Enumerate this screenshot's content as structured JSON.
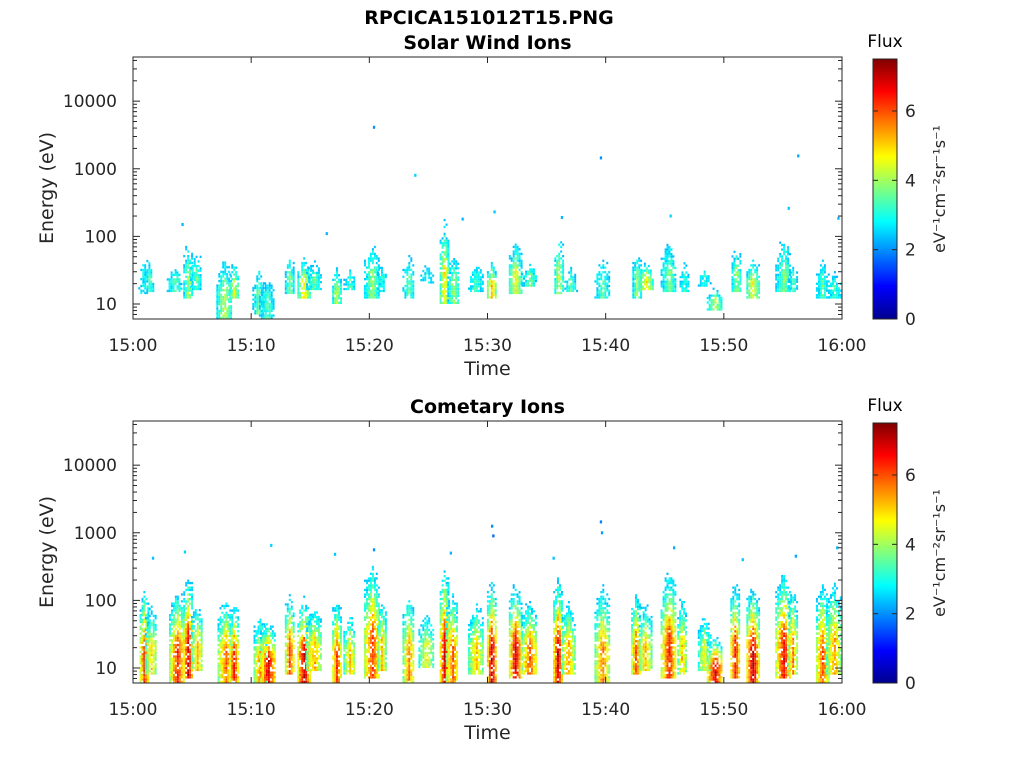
{
  "figure": {
    "title": "RPCICA151012T15.PNG"
  },
  "colorbar": {
    "label": "Flux",
    "unit_label": "eV⁻¹cm⁻²sr⁻¹s⁻¹",
    "range": [
      0,
      7.5
    ],
    "ticks": [
      0,
      2,
      4,
      6
    ],
    "colormap": "jet"
  },
  "chart_data": [
    {
      "type": "heatmap",
      "title": "Solar Wind Ions",
      "xlabel": "Time",
      "ylabel": "Energy (eV)",
      "x_ticks": [
        "15:00",
        "15:10",
        "15:20",
        "15:30",
        "15:40",
        "15:50",
        "16:00"
      ],
      "x_range_min": [
        0,
        60
      ],
      "y_ticks": [
        10,
        100,
        1000,
        10000
      ],
      "y_range": [
        6,
        45000
      ],
      "y_scale": "log",
      "colorbar_label": "Flux",
      "events": [
        {
          "t": 0.8,
          "e_lo": 14,
          "e_hi": 85,
          "peak": 3.0
        },
        {
          "t": 1.3,
          "e_lo": 15,
          "e_hi": 75,
          "peak": 3.3
        },
        {
          "t": 3.5,
          "e_lo": 15,
          "e_hi": 45,
          "peak": 3.5
        },
        {
          "t": 4.6,
          "e_lo": 12,
          "e_hi": 130,
          "peak": 4.0
        },
        {
          "t": 5.3,
          "e_lo": 16,
          "e_hi": 100,
          "peak": 3.5
        },
        {
          "t": 7.7,
          "e_lo": 6,
          "e_hi": 75,
          "peak": 4.2
        },
        {
          "t": 8.5,
          "e_lo": 12,
          "e_hi": 50,
          "peak": 4.4
        },
        {
          "t": 10.6,
          "e_lo": 7,
          "e_hi": 60,
          "peak": 3.6
        },
        {
          "t": 11.3,
          "e_lo": 6,
          "e_hi": 45,
          "peak": 3.4
        },
        {
          "t": 13.2,
          "e_lo": 14,
          "e_hi": 75,
          "peak": 3.8
        },
        {
          "t": 14.4,
          "e_lo": 12,
          "e_hi": 55,
          "peak": 4.9
        },
        {
          "t": 15.3,
          "e_lo": 16,
          "e_hi": 60,
          "peak": 3.5
        },
        {
          "t": 17.2,
          "e_lo": 10,
          "e_hi": 45,
          "peak": 4.2
        },
        {
          "t": 18.3,
          "e_lo": 16,
          "e_hi": 45,
          "peak": 3.3
        },
        {
          "t": 20.2,
          "e_lo": 12,
          "e_hi": 140,
          "peak": 3.9
        },
        {
          "t": 21.0,
          "e_lo": 15,
          "e_hi": 60,
          "peak": 3.2
        },
        {
          "t": 23.3,
          "e_lo": 12,
          "e_hi": 80,
          "peak": 3.6
        },
        {
          "t": 24.8,
          "e_lo": 20,
          "e_hi": 50,
          "peak": 3.0
        },
        {
          "t": 26.3,
          "e_lo": 10,
          "e_hi": 260,
          "peak": 4.8
        },
        {
          "t": 27.1,
          "e_lo": 10,
          "e_hi": 80,
          "peak": 4.0
        },
        {
          "t": 29.0,
          "e_lo": 15,
          "e_hi": 60,
          "peak": 3.4
        },
        {
          "t": 30.3,
          "e_lo": 12,
          "e_hi": 50,
          "peak": 5.2
        },
        {
          "t": 32.3,
          "e_lo": 14,
          "e_hi": 110,
          "peak": 4.6
        },
        {
          "t": 33.5,
          "e_lo": 18,
          "e_hi": 50,
          "peak": 3.6
        },
        {
          "t": 36.0,
          "e_lo": 14,
          "e_hi": 150,
          "peak": 4.3
        },
        {
          "t": 37.0,
          "e_lo": 15,
          "e_hi": 45,
          "peak": 3.4
        },
        {
          "t": 39.7,
          "e_lo": 12,
          "e_hi": 80,
          "peak": 3.5
        },
        {
          "t": 42.6,
          "e_lo": 12,
          "e_hi": 100,
          "peak": 3.9
        },
        {
          "t": 43.4,
          "e_lo": 16,
          "e_hi": 45,
          "peak": 4.8
        },
        {
          "t": 45.3,
          "e_lo": 15,
          "e_hi": 150,
          "peak": 3.7
        },
        {
          "t": 46.6,
          "e_lo": 15,
          "e_hi": 60,
          "peak": 3.2
        },
        {
          "t": 48.3,
          "e_lo": 18,
          "e_hi": 45,
          "peak": 3.0
        },
        {
          "t": 49.2,
          "e_lo": 8,
          "e_hi": 20,
          "peak": 4.2
        },
        {
          "t": 51.0,
          "e_lo": 15,
          "e_hi": 110,
          "peak": 4.0
        },
        {
          "t": 52.4,
          "e_lo": 12,
          "e_hi": 60,
          "peak": 4.7
        },
        {
          "t": 55.0,
          "e_lo": 15,
          "e_hi": 160,
          "peak": 3.8
        },
        {
          "t": 55.8,
          "e_lo": 15,
          "e_hi": 50,
          "peak": 3.4
        },
        {
          "t": 58.3,
          "e_lo": 12,
          "e_hi": 70,
          "peak": 3.5
        },
        {
          "t": 59.3,
          "e_lo": 12,
          "e_hi": 45,
          "peak": 3.2
        }
      ],
      "sparse_points": [
        {
          "t": 20.3,
          "e": 4100,
          "v": 2.0
        },
        {
          "t": 23.8,
          "e": 800,
          "v": 2.5
        },
        {
          "t": 39.5,
          "e": 1450,
          "v": 2.0
        },
        {
          "t": 56.2,
          "e": 1550,
          "v": 2.2
        },
        {
          "t": 4.1,
          "e": 150,
          "v": 2.3
        },
        {
          "t": 27.8,
          "e": 180,
          "v": 2.3
        },
        {
          "t": 30.5,
          "e": 230,
          "v": 2.4
        },
        {
          "t": 36.2,
          "e": 190,
          "v": 2.3
        },
        {
          "t": 45.4,
          "e": 200,
          "v": 2.5
        },
        {
          "t": 55.4,
          "e": 260,
          "v": 2.4
        },
        {
          "t": 59.6,
          "e": 185,
          "v": 2.3
        },
        {
          "t": 16.3,
          "e": 110,
          "v": 2.3
        }
      ]
    },
    {
      "type": "heatmap",
      "title": "Cometary Ions",
      "xlabel": "Time",
      "ylabel": "Energy (eV)",
      "x_ticks": [
        "15:00",
        "15:10",
        "15:20",
        "15:30",
        "15:40",
        "15:50",
        "16:00"
      ],
      "x_range_min": [
        0,
        60
      ],
      "y_ticks": [
        10,
        100,
        1000,
        10000
      ],
      "y_range": [
        6,
        45000
      ],
      "y_scale": "log",
      "colorbar_label": "Flux",
      "events": [
        {
          "t": 0.9,
          "e_lo": 6,
          "e_hi": 180,
          "peak": 6.3
        },
        {
          "t": 1.5,
          "e_lo": 8,
          "e_hi": 110,
          "peak": 5.0
        },
        {
          "t": 3.7,
          "e_lo": 6,
          "e_hi": 160,
          "peak": 6.4
        },
        {
          "t": 4.6,
          "e_lo": 7,
          "e_hi": 250,
          "peak": 6.9
        },
        {
          "t": 5.4,
          "e_lo": 9,
          "e_hi": 120,
          "peak": 5.2
        },
        {
          "t": 7.8,
          "e_lo": 6,
          "e_hi": 130,
          "peak": 5.9
        },
        {
          "t": 8.5,
          "e_lo": 6,
          "e_hi": 100,
          "peak": 6.6
        },
        {
          "t": 10.7,
          "e_lo": 6,
          "e_hi": 70,
          "peak": 5.6
        },
        {
          "t": 11.4,
          "e_lo": 6,
          "e_hi": 50,
          "peak": 6.9
        },
        {
          "t": 13.2,
          "e_lo": 8,
          "e_hi": 140,
          "peak": 6.1
        },
        {
          "t": 14.4,
          "e_lo": 6,
          "e_hi": 110,
          "peak": 7.1
        },
        {
          "t": 15.3,
          "e_lo": 9,
          "e_hi": 100,
          "peak": 5.4
        },
        {
          "t": 17.2,
          "e_lo": 6,
          "e_hi": 120,
          "peak": 6.3
        },
        {
          "t": 18.3,
          "e_lo": 8,
          "e_hi": 80,
          "peak": 5.1
        },
        {
          "t": 20.2,
          "e_lo": 7,
          "e_hi": 400,
          "peak": 6.3
        },
        {
          "t": 21.0,
          "e_lo": 9,
          "e_hi": 140,
          "peak": 5.2
        },
        {
          "t": 23.3,
          "e_lo": 6,
          "e_hi": 150,
          "peak": 5.6
        },
        {
          "t": 24.8,
          "e_lo": 10,
          "e_hi": 80,
          "peak": 4.7
        },
        {
          "t": 26.3,
          "e_lo": 6,
          "e_hi": 320,
          "peak": 6.9
        },
        {
          "t": 27.0,
          "e_lo": 6,
          "e_hi": 160,
          "peak": 6.0
        },
        {
          "t": 29.0,
          "e_lo": 8,
          "e_hi": 120,
          "peak": 5.2
        },
        {
          "t": 30.3,
          "e_lo": 6,
          "e_hi": 200,
          "peak": 7.1
        },
        {
          "t": 32.3,
          "e_lo": 7,
          "e_hi": 180,
          "peak": 6.9
        },
        {
          "t": 33.5,
          "e_lo": 8,
          "e_hi": 110,
          "peak": 6.1
        },
        {
          "t": 35.9,
          "e_lo": 6,
          "e_hi": 220,
          "peak": 7.0
        },
        {
          "t": 36.8,
          "e_lo": 8,
          "e_hi": 120,
          "peak": 5.5
        },
        {
          "t": 39.7,
          "e_lo": 6,
          "e_hi": 200,
          "peak": 5.7
        },
        {
          "t": 42.5,
          "e_lo": 8,
          "e_hi": 150,
          "peak": 6.1
        },
        {
          "t": 43.3,
          "e_lo": 9,
          "e_hi": 110,
          "peak": 5.4
        },
        {
          "t": 45.3,
          "e_lo": 7,
          "e_hi": 300,
          "peak": 6.4
        },
        {
          "t": 46.4,
          "e_lo": 8,
          "e_hi": 160,
          "peak": 5.2
        },
        {
          "t": 48.3,
          "e_lo": 9,
          "e_hi": 80,
          "peak": 4.6
        },
        {
          "t": 49.2,
          "e_lo": 6,
          "e_hi": 30,
          "peak": 6.9
        },
        {
          "t": 50.9,
          "e_lo": 7,
          "e_hi": 200,
          "peak": 6.6
        },
        {
          "t": 52.4,
          "e_lo": 6,
          "e_hi": 160,
          "peak": 7.1
        },
        {
          "t": 55.0,
          "e_lo": 7,
          "e_hi": 300,
          "peak": 6.6
        },
        {
          "t": 55.8,
          "e_lo": 8,
          "e_hi": 180,
          "peak": 5.7
        },
        {
          "t": 58.3,
          "e_lo": 6,
          "e_hi": 220,
          "peak": 6.1
        },
        {
          "t": 59.3,
          "e_lo": 8,
          "e_hi": 250,
          "peak": 5.4
        }
      ],
      "sparse_points": [
        {
          "t": 30.3,
          "e": 1250,
          "v": 2.0
        },
        {
          "t": 30.4,
          "e": 900,
          "v": 1.7
        },
        {
          "t": 39.5,
          "e": 1450,
          "v": 1.9
        },
        {
          "t": 39.6,
          "e": 1000,
          "v": 2.1
        },
        {
          "t": 11.6,
          "e": 650,
          "v": 2.5
        },
        {
          "t": 17.0,
          "e": 480,
          "v": 2.4
        },
        {
          "t": 20.3,
          "e": 560,
          "v": 2.0
        },
        {
          "t": 26.8,
          "e": 500,
          "v": 2.3
        },
        {
          "t": 4.3,
          "e": 520,
          "v": 2.5
        },
        {
          "t": 1.6,
          "e": 420,
          "v": 2.4
        },
        {
          "t": 45.7,
          "e": 600,
          "v": 2.2
        },
        {
          "t": 56.0,
          "e": 450,
          "v": 2.2
        },
        {
          "t": 59.5,
          "e": 600,
          "v": 2.3
        },
        {
          "t": 51.5,
          "e": 400,
          "v": 2.4
        },
        {
          "t": 35.5,
          "e": 420,
          "v": 2.4
        }
      ]
    }
  ]
}
